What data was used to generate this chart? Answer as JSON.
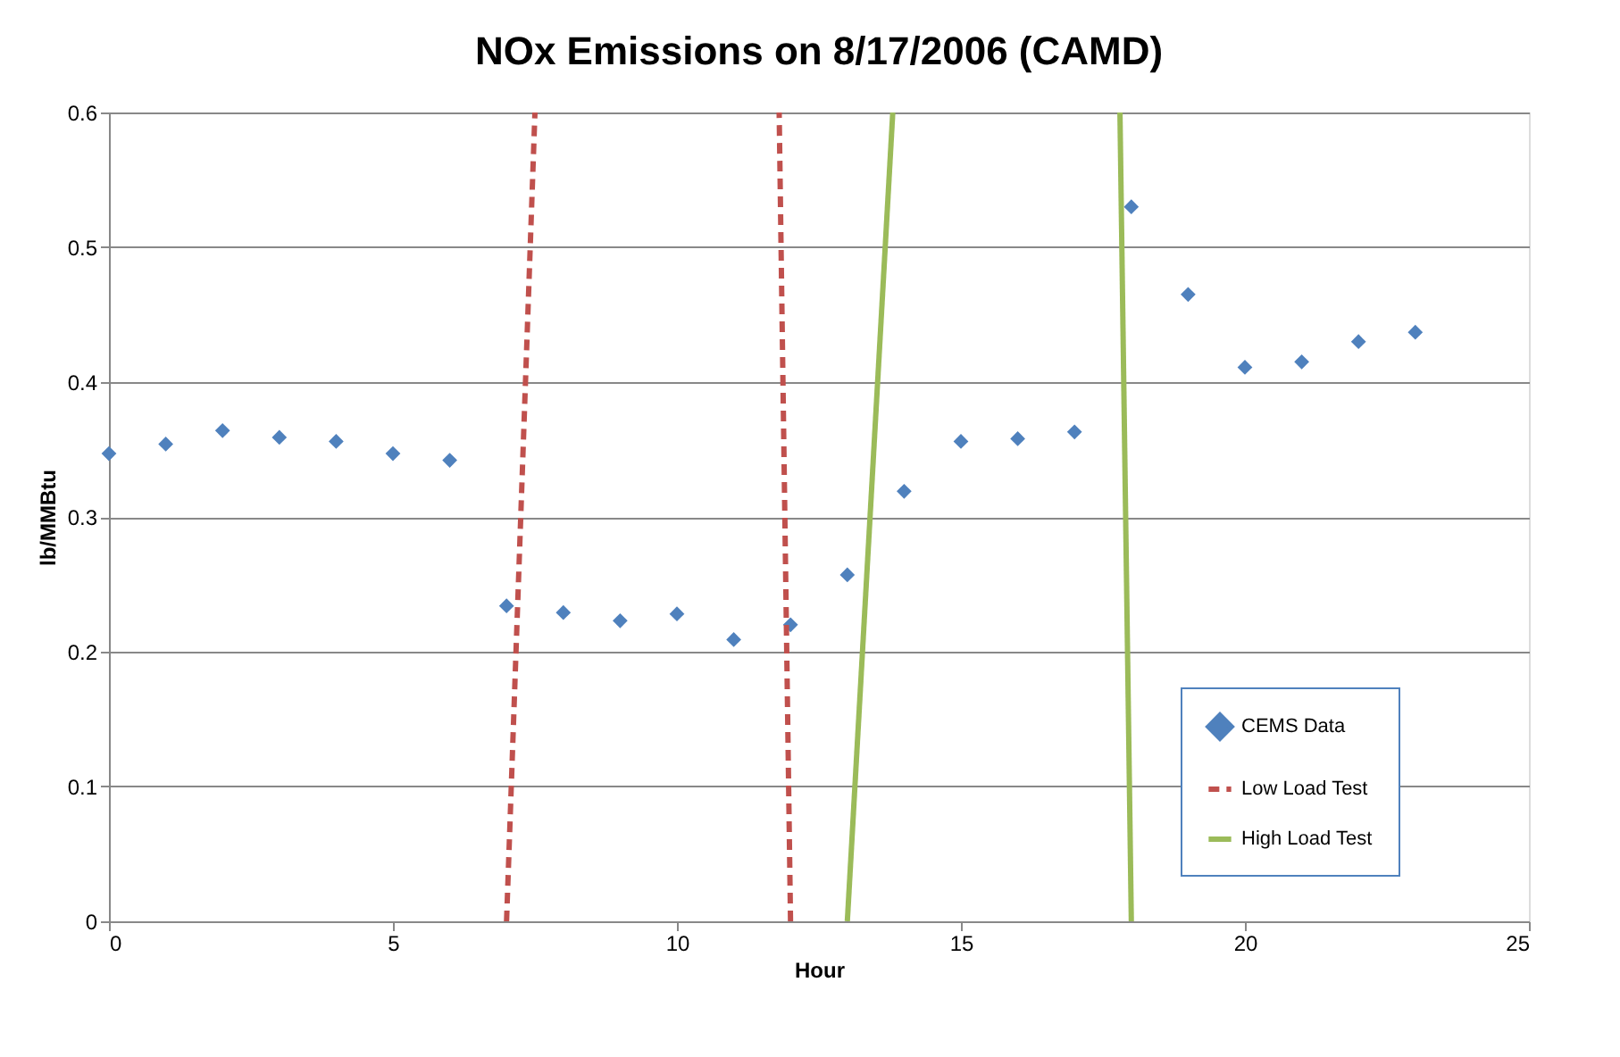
{
  "chart_data": {
    "type": "scatter",
    "title": "NOx Emissions on 8/17/2006 (CAMD)",
    "xlabel": "Hour",
    "ylabel": "lb/MMBtu",
    "xlim": [
      0,
      25
    ],
    "xticks": [
      0,
      5,
      10,
      15,
      20,
      25
    ],
    "ylim": [
      0,
      0.6
    ],
    "yticks": [
      0,
      0.1,
      0.2,
      0.3,
      0.4,
      0.5,
      0.6
    ],
    "grid": "y",
    "legend": "bottom right",
    "series": [
      {
        "name": "CEMS Data",
        "marker": "diamond",
        "color": "#4f81bd",
        "x": [
          0,
          1,
          2,
          3,
          4,
          5,
          6,
          7,
          8,
          9,
          10,
          11,
          12,
          13,
          14,
          15,
          16,
          17,
          18,
          19,
          20,
          21,
          22,
          23
        ],
        "values": [
          0.347,
          0.354,
          0.364,
          0.359,
          0.356,
          0.347,
          0.342,
          0.234,
          0.229,
          0.223,
          0.228,
          0.209,
          0.22,
          0.257,
          0.319,
          0.356,
          0.358,
          0.363,
          0.53,
          0.465,
          0.411,
          0.415,
          0.43,
          0.437
        ]
      },
      {
        "name": "Low Load Test",
        "type": "line",
        "line_style": "dashed",
        "color": "#c0504d",
        "x": [
          7,
          7.5,
          null,
          12,
          11.8
        ],
        "values": [
          0,
          0.6,
          null,
          0,
          0.6
        ]
      },
      {
        "name": "High Load Test",
        "type": "line",
        "line_style": "solid",
        "color": "#9bbb59",
        "x": [
          13,
          13.8,
          null,
          17.8,
          18
        ],
        "values": [
          0,
          0.6,
          null,
          0.6,
          0
        ]
      }
    ]
  }
}
